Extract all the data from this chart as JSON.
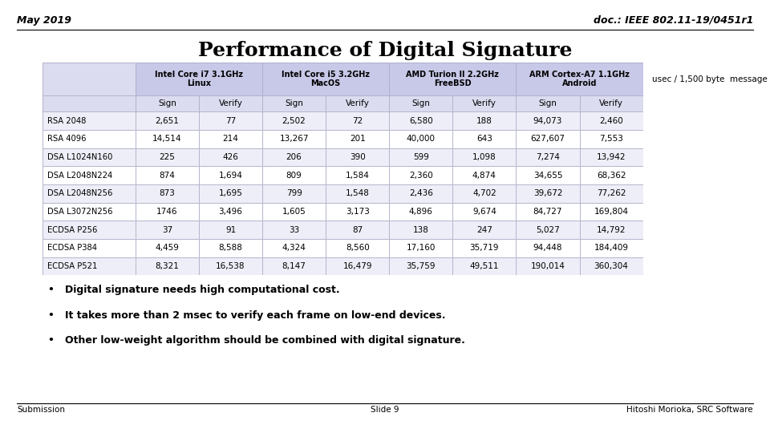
{
  "top_left": "May 2019",
  "top_right": "doc.: IEEE 802.11-19/0451r1",
  "title": "Performance of Digital Signature",
  "col_headers_main": [
    "Intel Core i7 3.1GHz\nLinux",
    "Intel Core i5 3.2GHz\nMacOS",
    "AMD Turion II 2.2GHz\nFreeBSD",
    "ARM Cortex-A7 1.1GHz\nAndroid"
  ],
  "col_headers_sub": [
    "Sign",
    "Verify",
    "Sign",
    "Verify",
    "Sign",
    "Verify",
    "Sign",
    "Verify"
  ],
  "row_labels": [
    "RSA 2048",
    "RSA 4096",
    "DSA L1024N160",
    "DSA L2048N224",
    "DSA L2048N256",
    "DSA L3072N256",
    "ECDSA P256",
    "ECDSA P384",
    "ECDSA P521"
  ],
  "table_data": [
    [
      "2,651",
      "77",
      "2,502",
      "72",
      "6,580",
      "188",
      "94,073",
      "2,460"
    ],
    [
      "14,514",
      "214",
      "13,267",
      "201",
      "40,000",
      "643",
      "627,607",
      "7,553"
    ],
    [
      "225",
      "426",
      "206",
      "390",
      "599",
      "1,098",
      "7,274",
      "13,942"
    ],
    [
      "874",
      "1,694",
      "809",
      "1,584",
      "2,360",
      "4,874",
      "34,655",
      "68,362"
    ],
    [
      "873",
      "1,695",
      "799",
      "1,548",
      "2,436",
      "4,702",
      "39,672",
      "77,262"
    ],
    [
      "1746",
      "3,496",
      "1,605",
      "3,173",
      "4,896",
      "9,674",
      "84,727",
      "169,804"
    ],
    [
      "37",
      "91",
      "33",
      "87",
      "138",
      "247",
      "5,027",
      "14,792"
    ],
    [
      "4,459",
      "8,588",
      "4,324",
      "8,560",
      "17,160",
      "35,719",
      "94,448",
      "184,409"
    ],
    [
      "8,321",
      "16,538",
      "8,147",
      "16,479",
      "35,759",
      "49,511",
      "190,014",
      "360,304"
    ]
  ],
  "unit_note": "usec / 1,500 byte  message",
  "bullets": [
    "Digital signature needs high computational cost.",
    "It takes more than 2 msec to verify each frame on low-end devices.",
    "Other low-weight algorithm should be combined with digital signature."
  ],
  "footer_left": "Submission",
  "footer_center": "Slide 9",
  "footer_right": "Hitoshi Morioka, SRC Software",
  "header_bg": "#c8c8e8",
  "subheader_bg": "#dcdcf0",
  "row_bg_even": "#eeeef8",
  "row_bg_odd": "#ffffff",
  "border_color": "#9999bb",
  "background_color": "#ffffff"
}
